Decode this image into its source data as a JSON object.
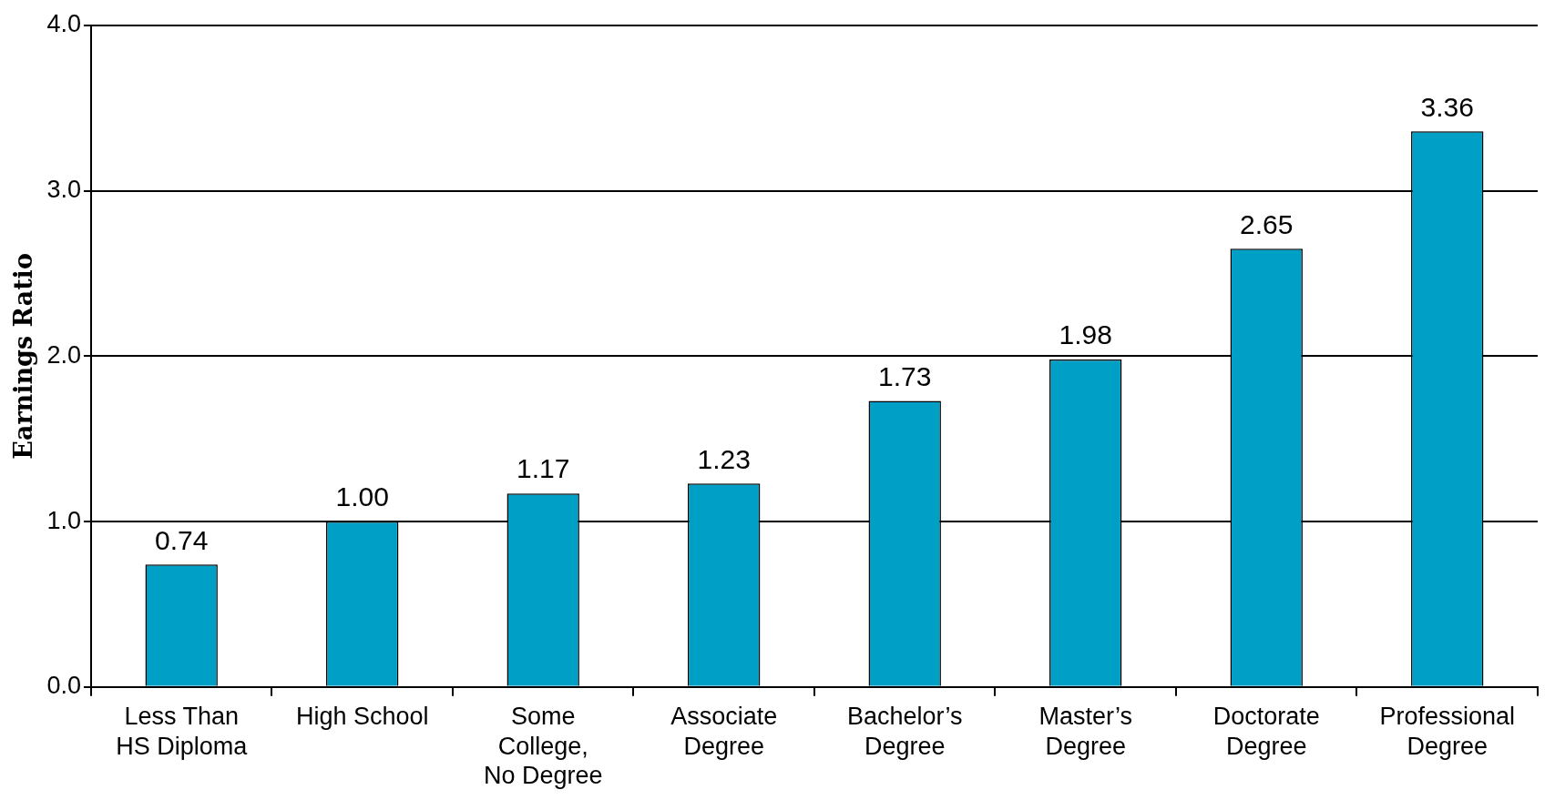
{
  "chart_data": {
    "type": "bar",
    "ylabel": "Earnings Ratio",
    "categories": [
      "Less Than\nHS Diploma",
      "High School",
      "Some\nCollege,\nNo Degree",
      "Associate\nDegree",
      "Bachelor’s\nDegree",
      "Master’s\nDegree",
      "Doctorate\nDegree",
      "Professional\nDegree"
    ],
    "values": [
      0.74,
      1.0,
      1.17,
      1.23,
      1.73,
      1.98,
      2.65,
      3.36
    ],
    "value_labels": [
      "0.74",
      "1.00",
      "1.17",
      "1.23",
      "1.73",
      "1.98",
      "2.65",
      "3.36"
    ],
    "color": "#00a0c6",
    "ylim": [
      0,
      4
    ],
    "yticks": [
      {
        "value": 0,
        "label": "0.0"
      },
      {
        "value": 1,
        "label": "1.0"
      },
      {
        "value": 2,
        "label": "2.0"
      },
      {
        "value": 3,
        "label": "3.0"
      },
      {
        "value": 4,
        "label": "4.0"
      }
    ],
    "grid": "y"
  }
}
